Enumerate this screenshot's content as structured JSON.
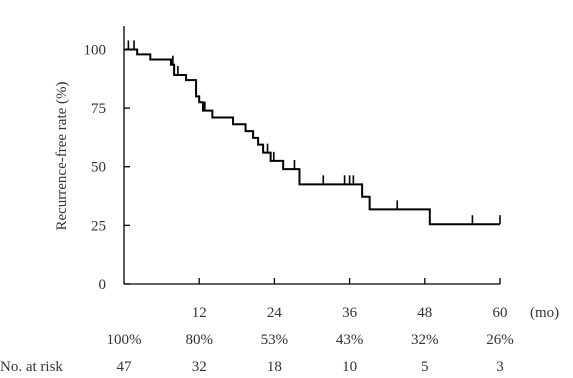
{
  "chart_data": {
    "type": "line",
    "subtype": "kaplan-meier step curve",
    "title": "",
    "ylabel": "Recurrence-free rate (%)",
    "xlabel": "",
    "x_unit": "(mo)",
    "xlim": [
      0,
      60
    ],
    "ylim": [
      0,
      110
    ],
    "xticks": [
      0,
      12,
      24,
      36,
      48,
      60
    ],
    "xtick_labels": [
      "12",
      "24",
      "36",
      "48",
      "60"
    ],
    "yticks": [
      0,
      25,
      50,
      75,
      100
    ],
    "ytick_labels": [
      "0",
      "25",
      "50",
      "75",
      "100"
    ],
    "grid": false,
    "legend": false,
    "line_color": "#000000",
    "series": [
      {
        "steps": [
          [
            0,
            100
          ],
          [
            2.1,
            97.9
          ],
          [
            3.4,
            97.9
          ],
          [
            4.2,
            95.7
          ],
          [
            6.9,
            95.7
          ],
          [
            7.5,
            93.5
          ],
          [
            8.0,
            89.1
          ],
          [
            9.4,
            89.1
          ],
          [
            9.9,
            86.9
          ],
          [
            10.9,
            86.9
          ],
          [
            11.5,
            80.0
          ],
          [
            12.0,
            77.5
          ],
          [
            12.6,
            73.9
          ],
          [
            14.1,
            71.0
          ],
          [
            17.4,
            68.1
          ],
          [
            19.4,
            65.2
          ],
          [
            20.6,
            62.3
          ],
          [
            21.4,
            59.4
          ],
          [
            22.2,
            56.0
          ],
          [
            23.4,
            52.5
          ],
          [
            25.4,
            49.0
          ],
          [
            28.0,
            42.5
          ],
          [
            38.0,
            37.2
          ],
          [
            39.2,
            31.8
          ],
          [
            48.8,
            25.5
          ]
        ],
        "end_x": 60,
        "censor_marks": [
          [
            0.7,
            100
          ],
          [
            1.6,
            100
          ],
          [
            7.8,
            93.5
          ],
          [
            8.6,
            89.1
          ],
          [
            12.9,
            73.9
          ],
          [
            22.9,
            56.0
          ],
          [
            23.9,
            52.5
          ],
          [
            27.2,
            49.0
          ],
          [
            31.8,
            42.5
          ],
          [
            35.2,
            42.5
          ],
          [
            36.0,
            42.5
          ],
          [
            36.6,
            42.5
          ],
          [
            43.6,
            31.8
          ],
          [
            55.6,
            25.5
          ],
          [
            60.0,
            25.5
          ]
        ]
      }
    ],
    "survival_row": {
      "x": [
        0,
        12,
        24,
        36,
        48,
        60
      ],
      "labels": [
        "100%",
        "80%",
        "53%",
        "43%",
        "32%",
        "26%"
      ]
    },
    "risk_table": {
      "label": "No. at risk",
      "x": [
        0,
        12,
        24,
        36,
        48,
        60
      ],
      "values": [
        "47",
        "32",
        "18",
        "10",
        "5",
        "3"
      ]
    }
  }
}
